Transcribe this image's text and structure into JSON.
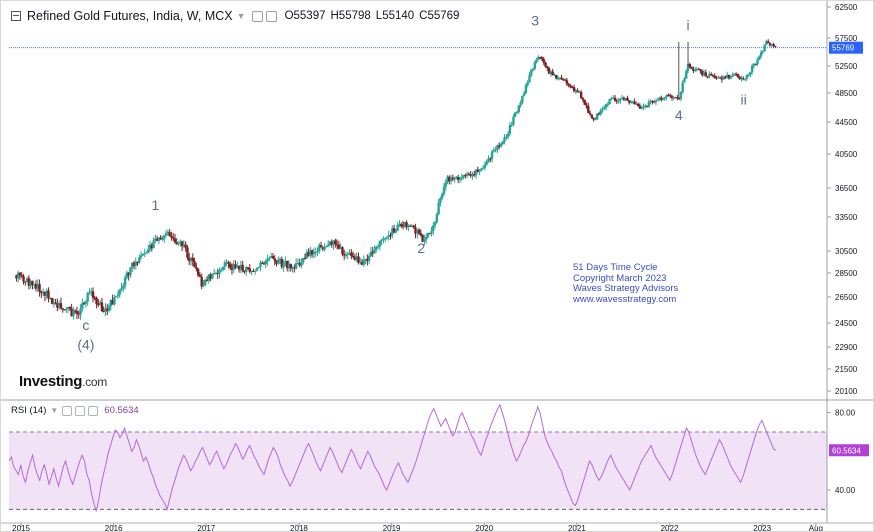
{
  "header": {
    "title": "Refined Gold Futures, India, W, MCX",
    "open": "O55397",
    "high": "H55798",
    "low": "L55140",
    "close": "C55769"
  },
  "rsi_header": {
    "label": "RSI (14)",
    "value": "60.5634"
  },
  "logo": {
    "brand": "Investing",
    "suffix": ".com"
  },
  "annotation_lines": [
    "51 Days Time Cycle",
    "Copyright March 2023",
    "Waves Strategy Advisors",
    "www.wavesstrategy.com"
  ],
  "colors": {
    "up": "#26a69a",
    "down": "#7b1f1f",
    "rsi_line": "#b56ad6",
    "rsi_band": "#f1e2f5",
    "price_tag": "#2962ff",
    "rsi_tag": "#b23fd6",
    "wave_label": "#5b6e8a",
    "annotation": "#3a4fbf"
  },
  "chart_data": [
    {
      "type": "candlestick",
      "title": "Refined Gold Futures, India, W, MCX",
      "x_ticks": [
        "2015",
        "2016",
        "2017",
        "2018",
        "2019",
        "2020",
        "2021",
        "2022",
        "2023",
        "Aug"
      ],
      "x_range": [
        "2014-11",
        "2023-09"
      ],
      "y_ticks": [
        20100,
        21500,
        22900,
        24500,
        26500,
        28500,
        30500,
        33500,
        36500,
        40500,
        44500,
        48500,
        52500,
        57500,
        62500
      ],
      "ylim": [
        19500,
        63000
      ],
      "last_price": "55769",
      "last_price_line": 55769,
      "wave_points": [
        {
          "t": 2014.95,
          "v": 28300
        },
        {
          "t": 2015.2,
          "v": 27200
        },
        {
          "t": 2015.35,
          "v": 26200
        },
        {
          "t": 2015.6,
          "v": 25100
        },
        {
          "t": 2015.75,
          "v": 27000
        },
        {
          "t": 2015.9,
          "v": 25300
        },
        {
          "t": 2016.05,
          "v": 26700
        },
        {
          "t": 2016.2,
          "v": 29300
        },
        {
          "t": 2016.35,
          "v": 30500
        },
        {
          "t": 2016.55,
          "v": 32000
        },
        {
          "t": 2016.75,
          "v": 31000
        },
        {
          "t": 2016.95,
          "v": 27600
        },
        {
          "t": 2017.2,
          "v": 29200
        },
        {
          "t": 2017.5,
          "v": 28700
        },
        {
          "t": 2017.7,
          "v": 29700
        },
        {
          "t": 2017.95,
          "v": 29000
        },
        {
          "t": 2018.15,
          "v": 30600
        },
        {
          "t": 2018.35,
          "v": 31300
        },
        {
          "t": 2018.55,
          "v": 30000
        },
        {
          "t": 2018.7,
          "v": 29500
        },
        {
          "t": 2018.9,
          "v": 31400
        },
        {
          "t": 2019.1,
          "v": 33000
        },
        {
          "t": 2019.25,
          "v": 32400
        },
        {
          "t": 2019.35,
          "v": 31300
        },
        {
          "t": 2019.45,
          "v": 32500
        },
        {
          "t": 2019.58,
          "v": 37500
        },
        {
          "t": 2019.75,
          "v": 37800
        },
        {
          "t": 2019.95,
          "v": 38500
        },
        {
          "t": 2020.15,
          "v": 41500
        },
        {
          "t": 2020.25,
          "v": 43000
        },
        {
          "t": 2020.4,
          "v": 47500
        },
        {
          "t": 2020.58,
          "v": 54500
        },
        {
          "t": 2020.7,
          "v": 51500
        },
        {
          "t": 2020.9,
          "v": 50000
        },
        {
          "t": 2021.05,
          "v": 48000
        },
        {
          "t": 2021.17,
          "v": 44800
        },
        {
          "t": 2021.35,
          "v": 47500
        },
        {
          "t": 2021.5,
          "v": 47800
        },
        {
          "t": 2021.7,
          "v": 46500
        },
        {
          "t": 2021.85,
          "v": 47600
        },
        {
          "t": 2022.0,
          "v": 48000
        },
        {
          "t": 2022.1,
          "v": 47700
        },
        {
          "t": 2022.2,
          "v": 52500
        },
        {
          "t": 2022.35,
          "v": 51500
        },
        {
          "t": 2022.55,
          "v": 50500
        },
        {
          "t": 2022.7,
          "v": 51200
        },
        {
          "t": 2022.8,
          "v": 50200
        },
        {
          "t": 2022.95,
          "v": 53500
        },
        {
          "t": 2023.05,
          "v": 56800
        },
        {
          "t": 2023.15,
          "v": 55769
        }
      ],
      "wave_labels": [
        {
          "text": "1",
          "t": 2016.45,
          "v": 34200
        },
        {
          "text": "2",
          "t": 2019.32,
          "v": 30300
        },
        {
          "text": "3",
          "t": 2020.55,
          "v": 59500
        },
        {
          "text": "4",
          "t": 2022.1,
          "v": 44800
        },
        {
          "text": "i",
          "t": 2022.2,
          "v": 58800
        },
        {
          "text": "ii",
          "t": 2022.8,
          "v": 46900
        },
        {
          "text": "c",
          "t": 2015.7,
          "v": 24050
        },
        {
          "text": "(4)",
          "t": 2015.7,
          "v": 22750
        }
      ]
    },
    {
      "type": "line",
      "title": "RSI (14)",
      "y_ticks": [
        40.0,
        80.0
      ],
      "ylim": [
        25,
        85
      ],
      "band": [
        30,
        70
      ],
      "last_value": "60.5634",
      "values": [
        55,
        57,
        52,
        50,
        48,
        53,
        47,
        44,
        50,
        54,
        58,
        52,
        48,
        45,
        50,
        53,
        48,
        43,
        47,
        51,
        46,
        42,
        47,
        52,
        55,
        50,
        46,
        43,
        47,
        51,
        55,
        58,
        55,
        48,
        45,
        38,
        33,
        29,
        35,
        42,
        48,
        53,
        59,
        63,
        67,
        71,
        70,
        67,
        69,
        72,
        68,
        64,
        60,
        62,
        66,
        63,
        59,
        55,
        57,
        54,
        50,
        47,
        43,
        40,
        37,
        35,
        33,
        30,
        35,
        40,
        44,
        48,
        52,
        55,
        58,
        56,
        53,
        50,
        52,
        55,
        57,
        60,
        62,
        59,
        56,
        53,
        55,
        58,
        60,
        57,
        54,
        51,
        53,
        56,
        59,
        61,
        64,
        62,
        59,
        56,
        58,
        61,
        63,
        60,
        57,
        55,
        52,
        50,
        48,
        52,
        56,
        59,
        62,
        60,
        57,
        53,
        50,
        47,
        45,
        42,
        44,
        47,
        50,
        53,
        56,
        59,
        62,
        64,
        61,
        58,
        55,
        52,
        50,
        53,
        56,
        59,
        62,
        60,
        57,
        54,
        51,
        49,
        52,
        55,
        58,
        61,
        59,
        56,
        53,
        51,
        54,
        57,
        60,
        58,
        55,
        52,
        50,
        48,
        45,
        42,
        40,
        43,
        46,
        49,
        52,
        54,
        51,
        48,
        46,
        44,
        47,
        50,
        53,
        57,
        61,
        65,
        69,
        73,
        77,
        80,
        82,
        79,
        76,
        73,
        75,
        77,
        74,
        71,
        68,
        70,
        74,
        78,
        80,
        77,
        74,
        71,
        68,
        66,
        63,
        60,
        58,
        62,
        66,
        69,
        73,
        76,
        79,
        82,
        84,
        80,
        76,
        71,
        66,
        62,
        58,
        55,
        57,
        60,
        63,
        65,
        68,
        72,
        76,
        79,
        83,
        80,
        74,
        68,
        65,
        62,
        60,
        57,
        55,
        52,
        50,
        46,
        42,
        39,
        36,
        33,
        32,
        35,
        39,
        43,
        47,
        51,
        55,
        53,
        50,
        47,
        45,
        47,
        50,
        53,
        56,
        58,
        55,
        52,
        50,
        48,
        46,
        44,
        42,
        40,
        43,
        46,
        49,
        52,
        55,
        57,
        59,
        61,
        63,
        60,
        57,
        55,
        53,
        51,
        49,
        47,
        45,
        48,
        52,
        56,
        60,
        64,
        68,
        72,
        70,
        66,
        62,
        58,
        55,
        52,
        50,
        48,
        51,
        54,
        57,
        60,
        63,
        66,
        64,
        61,
        58,
        55,
        52,
        50,
        48,
        46,
        44,
        47,
        51,
        55,
        59,
        63,
        67,
        71,
        74,
        76,
        73,
        70,
        67,
        64,
        61,
        60.56
      ]
    }
  ]
}
